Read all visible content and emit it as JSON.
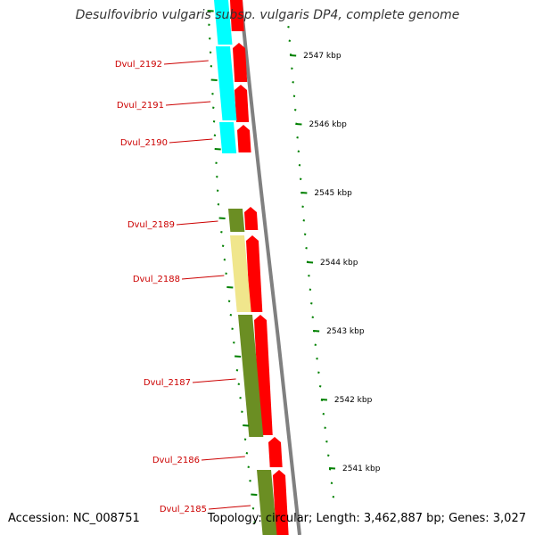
{
  "title": "Desulfovibrio vulgaris subsp. vulgaris DP4, complete genome",
  "footer": {
    "accession": "Accession: NC_008751",
    "summary": "Topology: circular; Length: 3,462,887 bp; Genes: 3,027"
  },
  "colors": {
    "forward_gene": "#ff0000",
    "cog_cyan": "#00ffff",
    "cog_olive": "#6b8e23",
    "cog_khaki": "#f0e68c",
    "gene_label": "#cc0000",
    "tick": "#008000",
    "backbone": "#808080"
  },
  "genes": [
    {
      "label": "Dvul_2192"
    },
    {
      "label": "Dvul_2191"
    },
    {
      "label": "Dvul_2190"
    },
    {
      "label": "Dvul_2189"
    },
    {
      "label": "Dvul_2188"
    },
    {
      "label": "Dvul_2187"
    },
    {
      "label": "Dvul_2186"
    },
    {
      "label": "Dvul_2185"
    }
  ],
  "scale_labels": [
    "2547 kbp",
    "2546 kbp",
    "2545 kbp",
    "2544 kbp",
    "2543 kbp",
    "2542 kbp",
    "2541 kbp"
  ]
}
